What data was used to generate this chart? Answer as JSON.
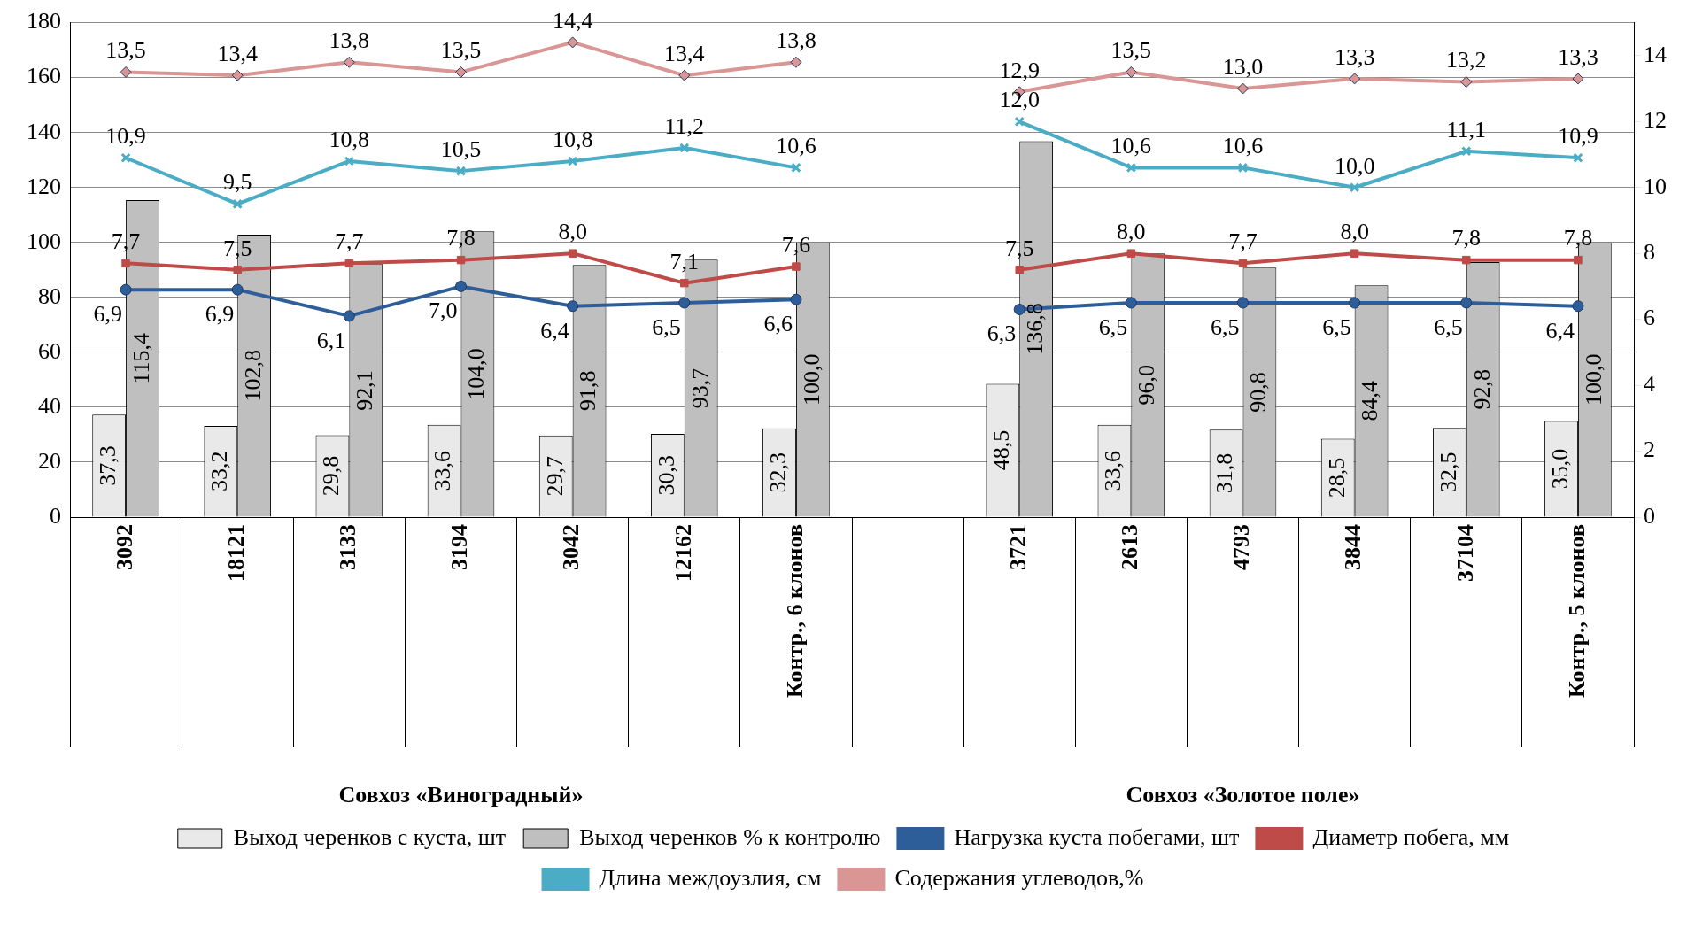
{
  "chart_data": {
    "type": "bar",
    "categories": [
      "3092",
      "18121",
      "3133",
      "3194",
      "3042",
      "12162",
      "Контр., 6 клонов",
      null,
      "3721",
      "2613",
      "4793",
      "3844",
      "37104",
      "Контр., 5 клонов"
    ],
    "series": [
      {
        "name": "Выход черенков с куста, шт",
        "color": "#e9e9e9",
        "values": [
          37.3,
          33.2,
          29.8,
          33.6,
          29.7,
          30.3,
          32.3,
          null,
          48.5,
          33.6,
          31.8,
          28.5,
          32.5,
          35.0
        ],
        "value_labels": [
          "37,3",
          "33,2",
          "29,8",
          "33,6",
          "29,7",
          "30,3",
          "32,3",
          null,
          "48,5",
          "33,6",
          "31,8",
          "28,5",
          "32,5",
          "35,0"
        ]
      },
      {
        "name": "Выход черенков % к контролю",
        "color": "#bfbfbf",
        "values": [
          115.4,
          102.8,
          92.1,
          104.0,
          91.8,
          93.7,
          100.0,
          null,
          136.8,
          96.0,
          90.8,
          84.4,
          92.8,
          100.0
        ],
        "value_labels": [
          "115,4",
          "102,8",
          "92,1",
          "104,0",
          "91,8",
          "93,7",
          "100,0",
          null,
          "136,8",
          "96,0",
          "90,8",
          "84,4",
          "92,8",
          "100,0"
        ]
      },
      {
        "name": "Нагрузка куста побегами, шт",
        "type": "line",
        "axis": "y2",
        "marker": "circle",
        "color": "#2e5e9a",
        "values": [
          6.9,
          6.9,
          6.1,
          7.0,
          6.4,
          6.5,
          6.6,
          null,
          6.3,
          6.5,
          6.5,
          6.5,
          6.5,
          6.4
        ],
        "value_labels": [
          "6,9",
          "6,9",
          "6,1",
          "7,0",
          "6,4",
          "6,5",
          "6,6",
          null,
          "6,3",
          "6,5",
          "6,5",
          "6,5",
          "6,5",
          "6,4"
        ]
      },
      {
        "name": "Диаметр побега, мм",
        "type": "line",
        "axis": "y2",
        "marker": "square",
        "color": "#be4b48",
        "values": [
          7.7,
          7.5,
          7.7,
          7.8,
          8.0,
          7.1,
          7.6,
          null,
          7.5,
          8.0,
          7.7,
          8.0,
          7.8,
          7.8
        ],
        "value_labels": [
          "7,7",
          "7,5",
          "7,7",
          "7,8",
          "8,0",
          "7,1",
          "7,6",
          null,
          "7,5",
          "8,0",
          "7,7",
          "8,0",
          "7,8",
          "7,8"
        ]
      },
      {
        "name": "Длина междоузлия, см",
        "type": "line",
        "axis": "y2",
        "marker": "cross",
        "color": "#4bacc6",
        "values": [
          10.9,
          9.5,
          10.8,
          10.5,
          10.8,
          11.2,
          10.6,
          null,
          12.0,
          10.6,
          10.6,
          10.0,
          11.1,
          10.9
        ],
        "value_labels": [
          "10,9",
          "9,5",
          "10,8",
          "10,5",
          "10,8",
          "11,2",
          "10,6",
          null,
          "12,0",
          "10,6",
          "10,6",
          "10,0",
          "11,1",
          "10,9"
        ]
      },
      {
        "name": "Содержания углеводов,%",
        "type": "line",
        "axis": "y2",
        "marker": "diamond",
        "color": "#d99694",
        "values": [
          13.5,
          13.4,
          13.8,
          13.5,
          14.4,
          13.4,
          13.8,
          null,
          12.9,
          13.5,
          13.0,
          13.3,
          13.2,
          13.3
        ],
        "value_labels": [
          "13,5",
          "13,4",
          "13,8",
          "13,5",
          "14,4",
          "13,4",
          "13,8",
          null,
          "12,9",
          "13,5",
          "13,0",
          "13,3",
          "13,2",
          "13,3"
        ]
      }
    ],
    "ylim": [
      0,
      180
    ],
    "yticks": [
      0,
      20,
      40,
      60,
      80,
      100,
      120,
      140,
      160,
      180
    ],
    "y2lim": [
      0,
      15
    ],
    "y2ticks": [
      0,
      2,
      4,
      6,
      8,
      10,
      12,
      14
    ],
    "grid": "y",
    "legend": "bottom",
    "annotations": [
      "Совхоз «Виноградный»",
      "Совхоз «Золотое поле»"
    ]
  }
}
